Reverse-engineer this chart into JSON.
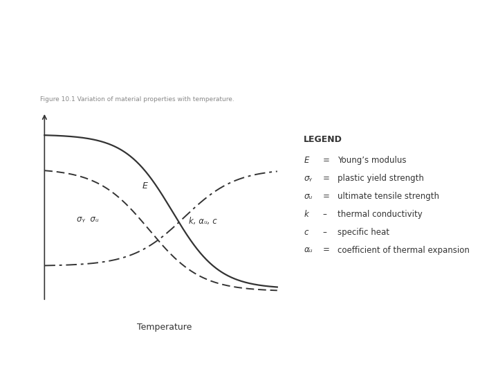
{
  "title": "Variation of material properties with temperature",
  "title_color": "#2B3990",
  "title_fontsize": 15,
  "xlabel": "Temperature",
  "fig_caption": "Figure 10.1 Variation of material properties with temperature.",
  "bg_color": "#ffffff",
  "curve_color": "#333333",
  "legend_title": "LEGEND",
  "legend_items": [
    {
      "symbol": "E",
      "eq": "=",
      "desc": "Young’s modulus"
    },
    {
      "symbol": "σᵧ",
      "eq": "=",
      "desc": "plastic yield strength"
    },
    {
      "symbol": "σᵤ",
      "eq": "=",
      "desc": "ultimate tensile strength"
    },
    {
      "symbol": "k",
      "eq": "–",
      "desc": "thermal conductivity"
    },
    {
      "symbol": "c",
      "eq": "–",
      "desc": "specific heat"
    },
    {
      "symbol": "αᵤ",
      "eq": "=",
      "desc": "coefficient of thermal expansion"
    }
  ],
  "label_E": "E",
  "label_sigma": "σᵧ  σᵤ",
  "label_k_alpha_c": "k, αᵤ, c"
}
